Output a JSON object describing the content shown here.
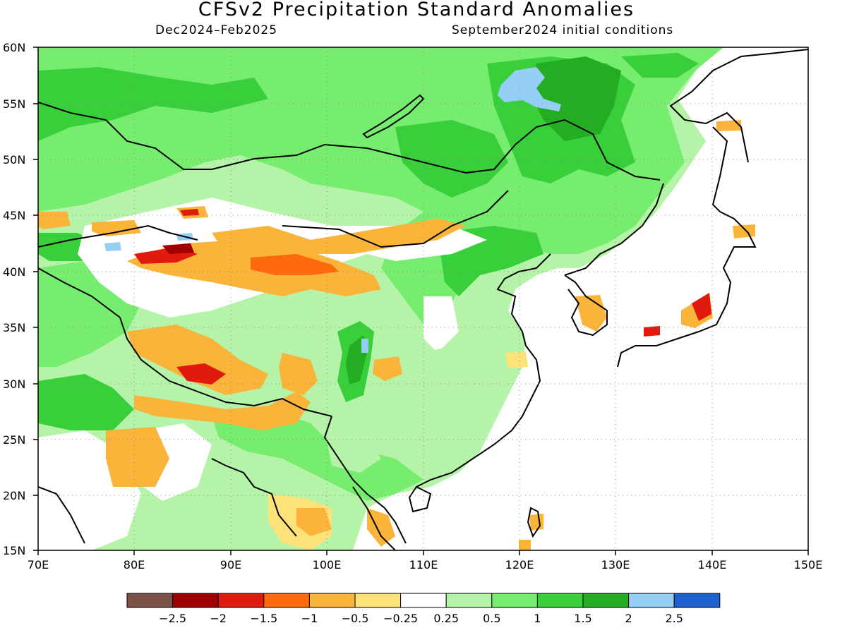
{
  "title": "CFSv2 Precipitation Standard Anomalies",
  "subtitle_left": "Dec2024–Feb2025",
  "subtitle_right": "September2024 initial conditions",
  "lat_labels": [
    "60N",
    "55N",
    "50N",
    "45N",
    "40N",
    "35N",
    "30N",
    "25N",
    "20N",
    "15N"
  ],
  "lon_labels": [
    "70E",
    "80E",
    "90E",
    "100E",
    "110E",
    "120E",
    "130E",
    "140E",
    "150E"
  ],
  "colorbar": {
    "colors": [
      "#7b5148",
      "#a10000",
      "#e01a0d",
      "#ff6a0c",
      "#fbb43a",
      "#fde27a",
      "#ffffff",
      "#b5f3a8",
      "#76ed6f",
      "#38cf3b",
      "#22ad22",
      "#96cff6",
      "#1e62d2"
    ],
    "labels": [
      "−2.5",
      "−2",
      "−1.5",
      "−1",
      "−0.5",
      "−0.25",
      "0.25",
      "0.5",
      "1",
      "1.5",
      "2",
      "2.5"
    ]
  }
}
